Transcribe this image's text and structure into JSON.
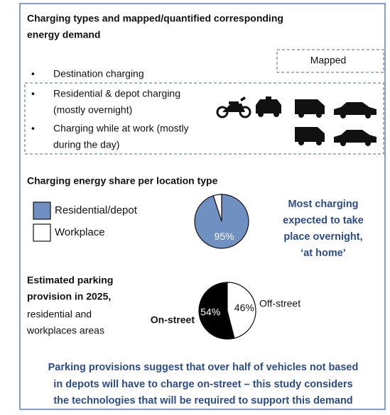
{
  "title": [
    "Charging types and mapped/quantified corresponding",
    "energy demand"
  ],
  "mapped_label": "Mapped",
  "bullets": [
    [
      "Destination charging"
    ],
    [
      "Residential & depot charging",
      "(mostly overnight)"
    ],
    [
      "Charging while at work (mostly",
      "during the day)"
    ]
  ],
  "chart_data": [
    {
      "type": "pie",
      "title": "Charging energy share per location type",
      "categories": [
        "Residential/depot",
        "Workplace"
      ],
      "values": [
        95,
        5
      ],
      "value_labels": [
        "95%",
        null
      ],
      "colors": [
        "#7190c2",
        "#ffffff"
      ],
      "direction": "clockwise",
      "legend": "left"
    },
    {
      "type": "pie",
      "categories": [
        "On-street",
        "Off-street"
      ],
      "values": [
        54,
        46
      ],
      "value_labels": [
        "54%",
        "46%"
      ],
      "colors": [
        "#000000",
        "#ffffff"
      ],
      "direction": "counterclockwise"
    }
  ],
  "callout": [
    "Most charging",
    "expected to take",
    "place overnight,",
    "‘at home’"
  ],
  "parking_caption_bold": [
    "Estimated parking",
    "provision in 2025,"
  ],
  "parking_caption": [
    "residential and",
    "workplaces areas"
  ],
  "footer": [
    "Parking provisions suggest that over half of vehicles not based",
    "in depots will have to charge on-street – this study considers",
    "the technologies that will be required to support this demand"
  ]
}
